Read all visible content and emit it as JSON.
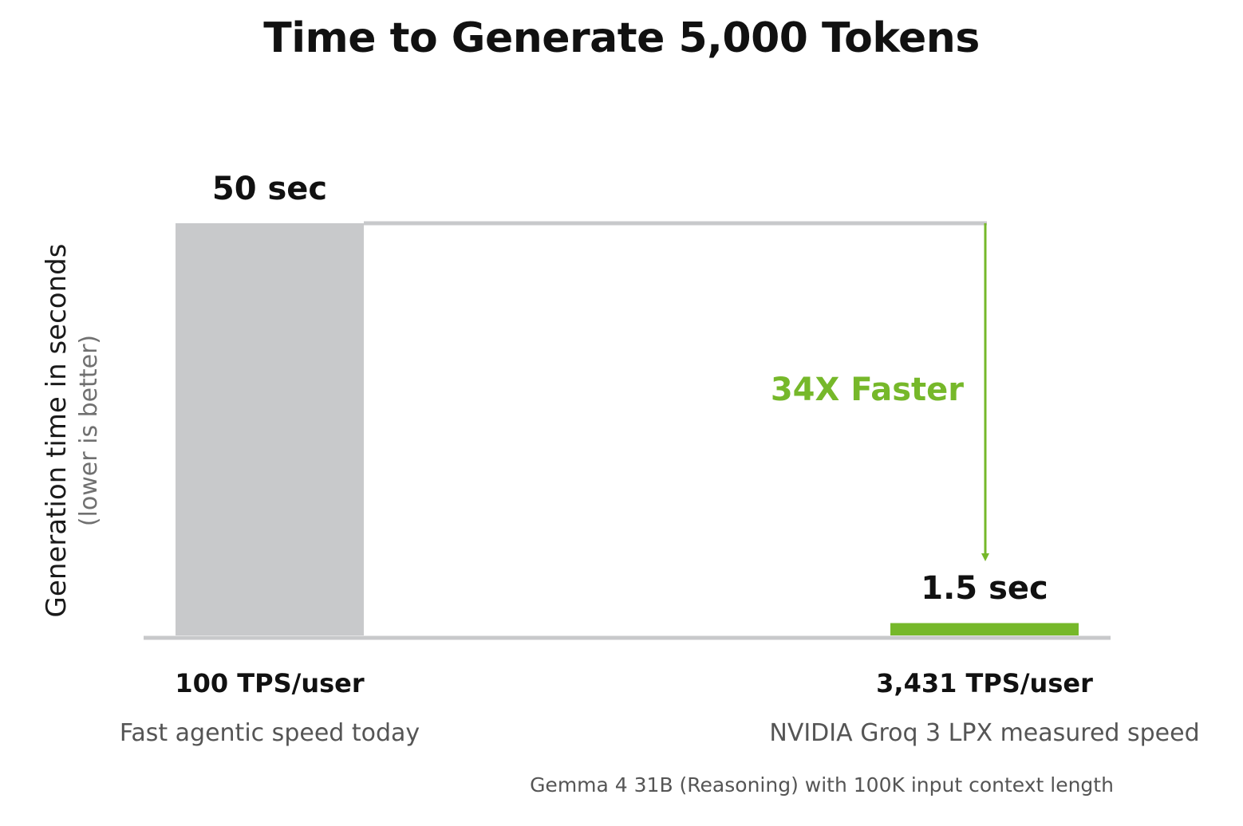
{
  "chart_data": {
    "type": "bar",
    "title": "Time to Generate 5,000 Tokens",
    "ylabel": "Generation time in seconds",
    "ylabel_note": "(lower is better)",
    "ylim": [
      0,
      50
    ],
    "grid": false,
    "categories": [
      "100 TPS/user",
      "3,431 TPS/user"
    ],
    "category_subtitles": [
      "Fast agentic speed today",
      "NVIDIA Groq 3 LPX measured speed"
    ],
    "values": [
      50,
      1.5
    ],
    "data_labels": [
      "50 sec",
      "1.5 sec"
    ],
    "bar_colors": [
      "#c8c9cb",
      "#76b82a"
    ],
    "annotation": {
      "text": "34X Faster",
      "color": "#76b82a"
    },
    "footnote": "Gemma 4 31B (Reasoning) with 100K input context length"
  }
}
